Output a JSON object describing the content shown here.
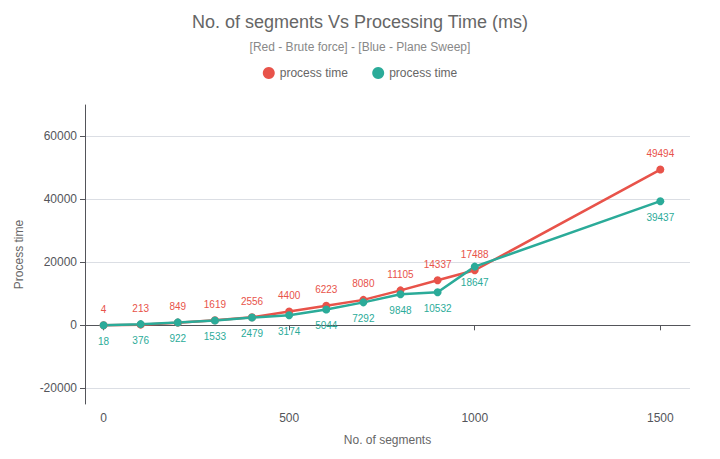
{
  "chart_data": {
    "type": "line",
    "title": "No. of segments Vs Processing Time (ms)",
    "subtitle": "[Red - Brute force] - [Blue - Plane Sweep]",
    "xlabel": "No. of segments",
    "ylabel": "Process time",
    "x": [
      0,
      100,
      200,
      300,
      400,
      500,
      600,
      700,
      800,
      900,
      1000,
      1500
    ],
    "series": [
      {
        "name": "process time",
        "color": "#e8534a",
        "values": [
          4,
          213,
          849,
          1619,
          2556,
          4400,
          6223,
          8080,
          11105,
          14337,
          17488,
          49494
        ]
      },
      {
        "name": "process time",
        "color": "#2bab99",
        "values": [
          18,
          376,
          922,
          1533,
          2479,
          3174,
          5044,
          7292,
          9848,
          10532,
          18647,
          39437
        ]
      }
    ],
    "xlim": [
      -50,
      1580
    ],
    "xticks": [
      0,
      500,
      1000,
      1500
    ],
    "ylim": [
      -25000,
      70000
    ],
    "yticks": [
      -20000,
      0,
      20000,
      40000,
      60000
    ],
    "grid": true,
    "legend": "top",
    "data_labels": true,
    "marker": "circle"
  }
}
